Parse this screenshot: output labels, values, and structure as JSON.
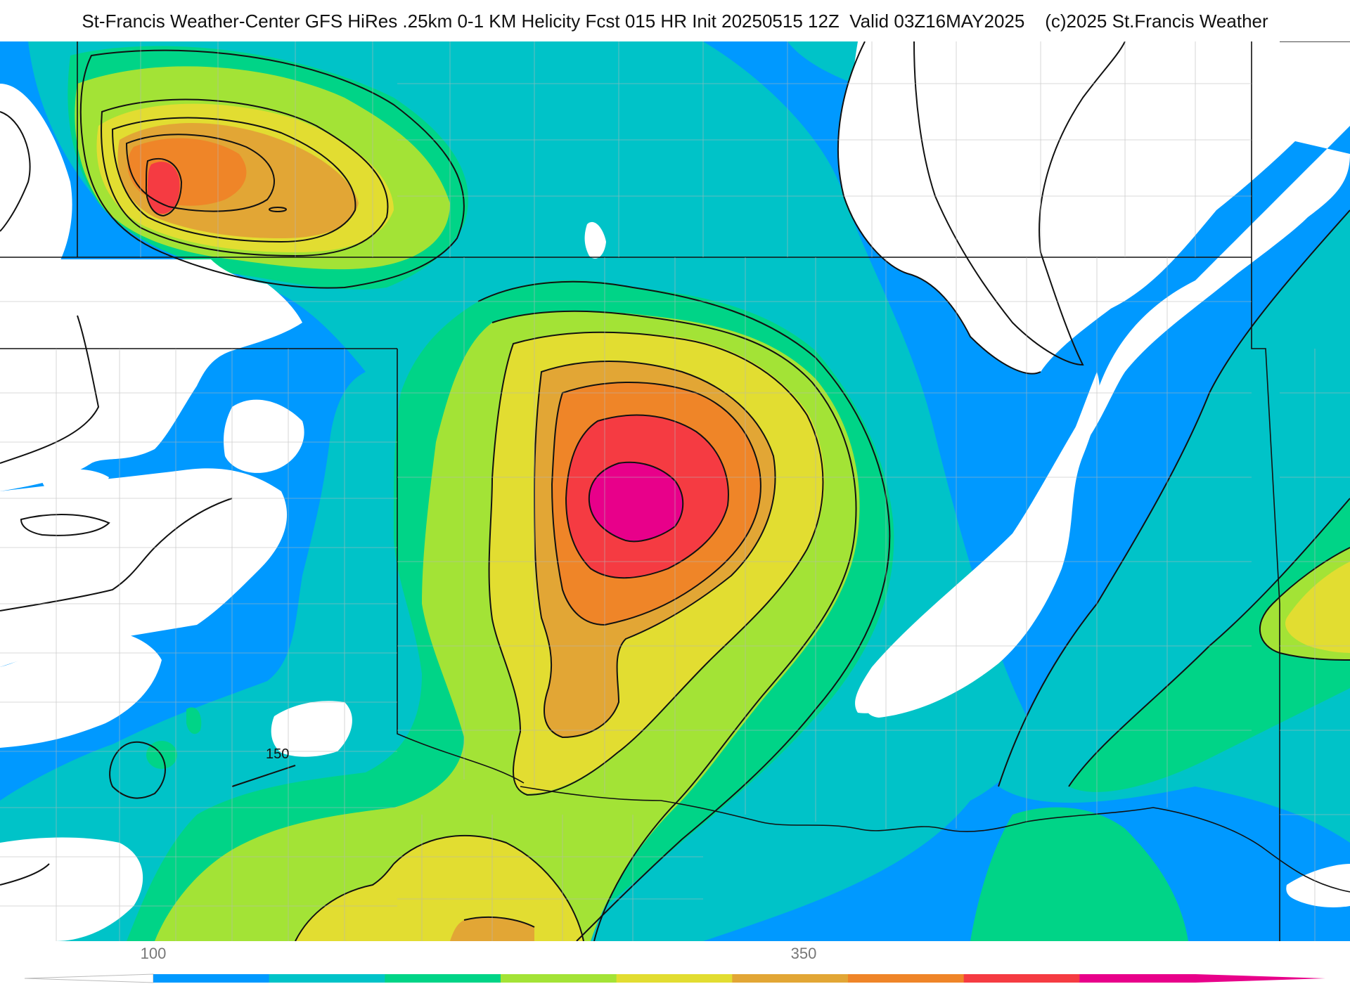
{
  "header": {
    "title": "St-Francis Weather-Center GFS HiRes .25km 0-1 KM Helicity Fcst 015 HR Init 20250515 12Z  Valid 03Z16MAY2025    (c)2025 St.Francis Weather"
  },
  "map": {
    "contour_label": "150"
  },
  "legend": {
    "ticks": [
      "100",
      "350"
    ],
    "colors": {
      "below": "#ffffff",
      "bins": [
        "#0099ff",
        "#00c3c8",
        "#00d487",
        "#a3e336",
        "#e2dd31",
        "#e2a635",
        "#ef8528",
        "#f53b42",
        "#e8008a"
      ]
    }
  },
  "palette": {
    "white": "#ffffff",
    "blue": "#0099ff",
    "teal": "#00c3c8",
    "green": "#00d487",
    "lime": "#a3e336",
    "yellow": "#e2dd31",
    "gold": "#e2a635",
    "orange": "#ef8528",
    "red": "#f53b42",
    "magenta": "#e8008a"
  }
}
